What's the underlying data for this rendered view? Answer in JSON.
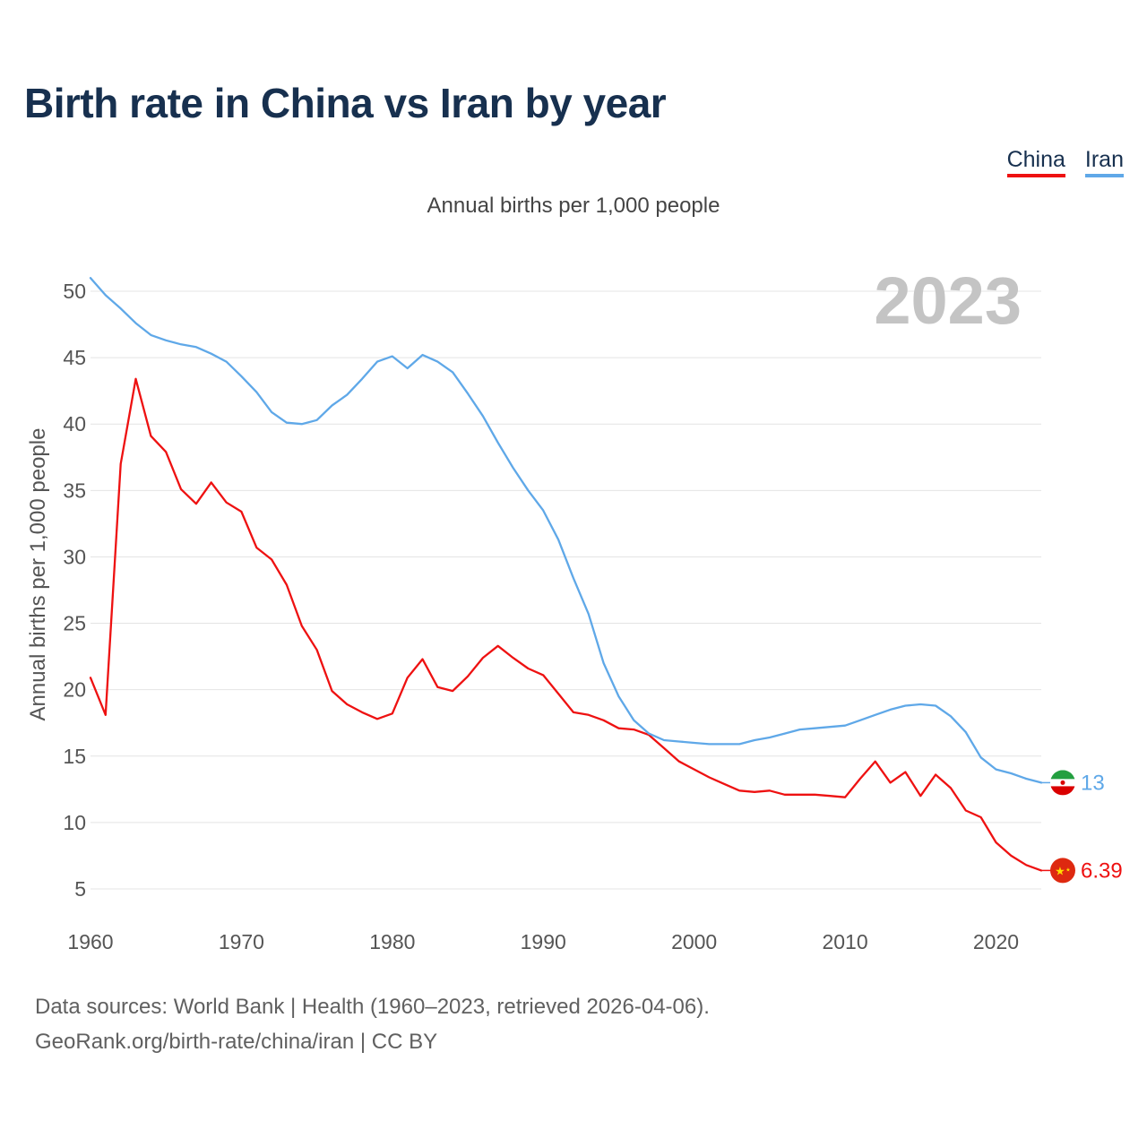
{
  "chart_data": {
    "type": "line",
    "title": "Birth rate in China vs Iran by year",
    "subtitle": "Annual births per 1,000 people",
    "ylabel": "Annual births per 1,000 people",
    "xlabel": "",
    "year_label": "2023",
    "xlim": [
      1960,
      2023
    ],
    "ylim": [
      3.5,
      52
    ],
    "x_ticks": [
      1960,
      1970,
      1980,
      1990,
      2000,
      2010,
      2020
    ],
    "y_ticks": [
      5,
      10,
      15,
      20,
      25,
      30,
      35,
      40,
      45,
      50
    ],
    "grid": true,
    "legend_position": "top-right",
    "x": [
      1960,
      1961,
      1962,
      1963,
      1964,
      1965,
      1966,
      1967,
      1968,
      1969,
      1970,
      1971,
      1972,
      1973,
      1974,
      1975,
      1976,
      1977,
      1978,
      1979,
      1980,
      1981,
      1982,
      1983,
      1984,
      1985,
      1986,
      1987,
      1988,
      1989,
      1990,
      1991,
      1992,
      1993,
      1994,
      1995,
      1996,
      1997,
      1998,
      1999,
      2000,
      2001,
      2002,
      2003,
      2004,
      2005,
      2006,
      2007,
      2008,
      2009,
      2010,
      2011,
      2012,
      2013,
      2014,
      2015,
      2016,
      2017,
      2018,
      2019,
      2020,
      2021,
      2022,
      2023
    ],
    "series": [
      {
        "name": "China",
        "color": "#ee1111",
        "end_label": "6.39",
        "values": [
          20.9,
          18.1,
          37.0,
          43.4,
          39.1,
          37.9,
          35.1,
          34.0,
          35.6,
          34.1,
          33.4,
          30.7,
          29.8,
          27.9,
          24.8,
          23.0,
          19.9,
          18.9,
          18.3,
          17.8,
          18.2,
          20.9,
          22.3,
          20.2,
          19.9,
          21.0,
          22.4,
          23.3,
          22.4,
          21.6,
          21.1,
          19.7,
          18.3,
          18.1,
          17.7,
          17.1,
          17.0,
          16.6,
          15.6,
          14.6,
          14.0,
          13.4,
          12.9,
          12.4,
          12.3,
          12.4,
          12.1,
          12.1,
          12.1,
          12.0,
          11.9,
          13.3,
          14.6,
          13.0,
          13.8,
          12.0,
          13.6,
          12.6,
          10.9,
          10.4,
          8.5,
          7.5,
          6.8,
          6.39
        ]
      },
      {
        "name": "Iran",
        "color": "#5fa8e8",
        "end_label": "13",
        "values": [
          51.0,
          49.7,
          48.7,
          47.6,
          46.7,
          46.3,
          46.0,
          45.8,
          45.3,
          44.7,
          43.6,
          42.4,
          40.9,
          40.1,
          40.0,
          40.3,
          41.4,
          42.2,
          43.4,
          44.7,
          45.1,
          44.2,
          45.2,
          44.7,
          43.9,
          42.3,
          40.6,
          38.6,
          36.7,
          35.0,
          33.5,
          31.3,
          28.4,
          25.7,
          22.0,
          19.5,
          17.7,
          16.7,
          16.2,
          16.1,
          16.0,
          15.9,
          15.9,
          15.9,
          16.2,
          16.4,
          16.7,
          17.0,
          17.1,
          17.2,
          17.3,
          17.7,
          18.1,
          18.5,
          18.8,
          18.9,
          18.8,
          18.0,
          16.8,
          14.9,
          14.0,
          13.7,
          13.3,
          13.0
        ]
      }
    ]
  },
  "legend": {
    "items": [
      "China",
      "Iran"
    ]
  },
  "footer": {
    "line1": "Data sources: World Bank | Health (1960–2023, retrieved 2026-04-06).",
    "line2": "GeoRank.org/birth-rate/china/iran | CC BY"
  },
  "icons": {
    "china_marker": "china-flag-icon",
    "iran_marker": "iran-flag-icon"
  }
}
